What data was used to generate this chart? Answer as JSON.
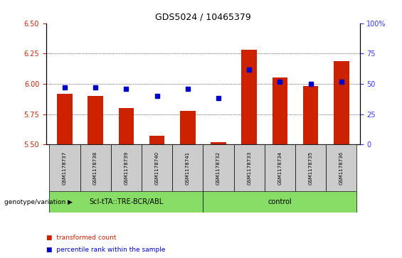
{
  "title": "GDS5024 / 10465379",
  "samples": [
    "GSM1178737",
    "GSM1178738",
    "GSM1178739",
    "GSM1178740",
    "GSM1178741",
    "GSM1178732",
    "GSM1178733",
    "GSM1178734",
    "GSM1178735",
    "GSM1178736"
  ],
  "transformed_count": [
    5.92,
    5.9,
    5.8,
    5.57,
    5.78,
    5.52,
    6.28,
    6.05,
    5.98,
    6.19
  ],
  "percentile_rank": [
    47,
    47,
    46,
    40,
    46,
    38,
    62,
    52,
    50,
    52
  ],
  "ylim_left": [
    5.5,
    6.5
  ],
  "ylim_right": [
    0,
    100
  ],
  "yticks_left": [
    5.5,
    5.75,
    6.0,
    6.25,
    6.5
  ],
  "yticks_right": [
    0,
    25,
    50,
    75,
    100
  ],
  "bar_color": "#cc2200",
  "dot_color": "#0000cc",
  "group1_label": "ScI-tTA::TRE-BCR/ABL",
  "group2_label": "control",
  "group1_indices": [
    0,
    1,
    2,
    3,
    4
  ],
  "group2_indices": [
    5,
    6,
    7,
    8,
    9
  ],
  "group_bg_color": "#88dd66",
  "sample_bg_color": "#cccccc",
  "ylabel_left_color": "#cc2200",
  "ylabel_right_color": "#3333ff",
  "genotype_label": "genotype/variation",
  "legend_transformed": "transformed count",
  "legend_percentile": "percentile rank within the sample",
  "bar_width": 0.5,
  "base_value": 5.5,
  "title_fontsize": 9,
  "tick_fontsize": 7,
  "sample_fontsize": 5,
  "group_fontsize": 7,
  "legend_fontsize": 6.5,
  "genotype_fontsize": 6.5
}
